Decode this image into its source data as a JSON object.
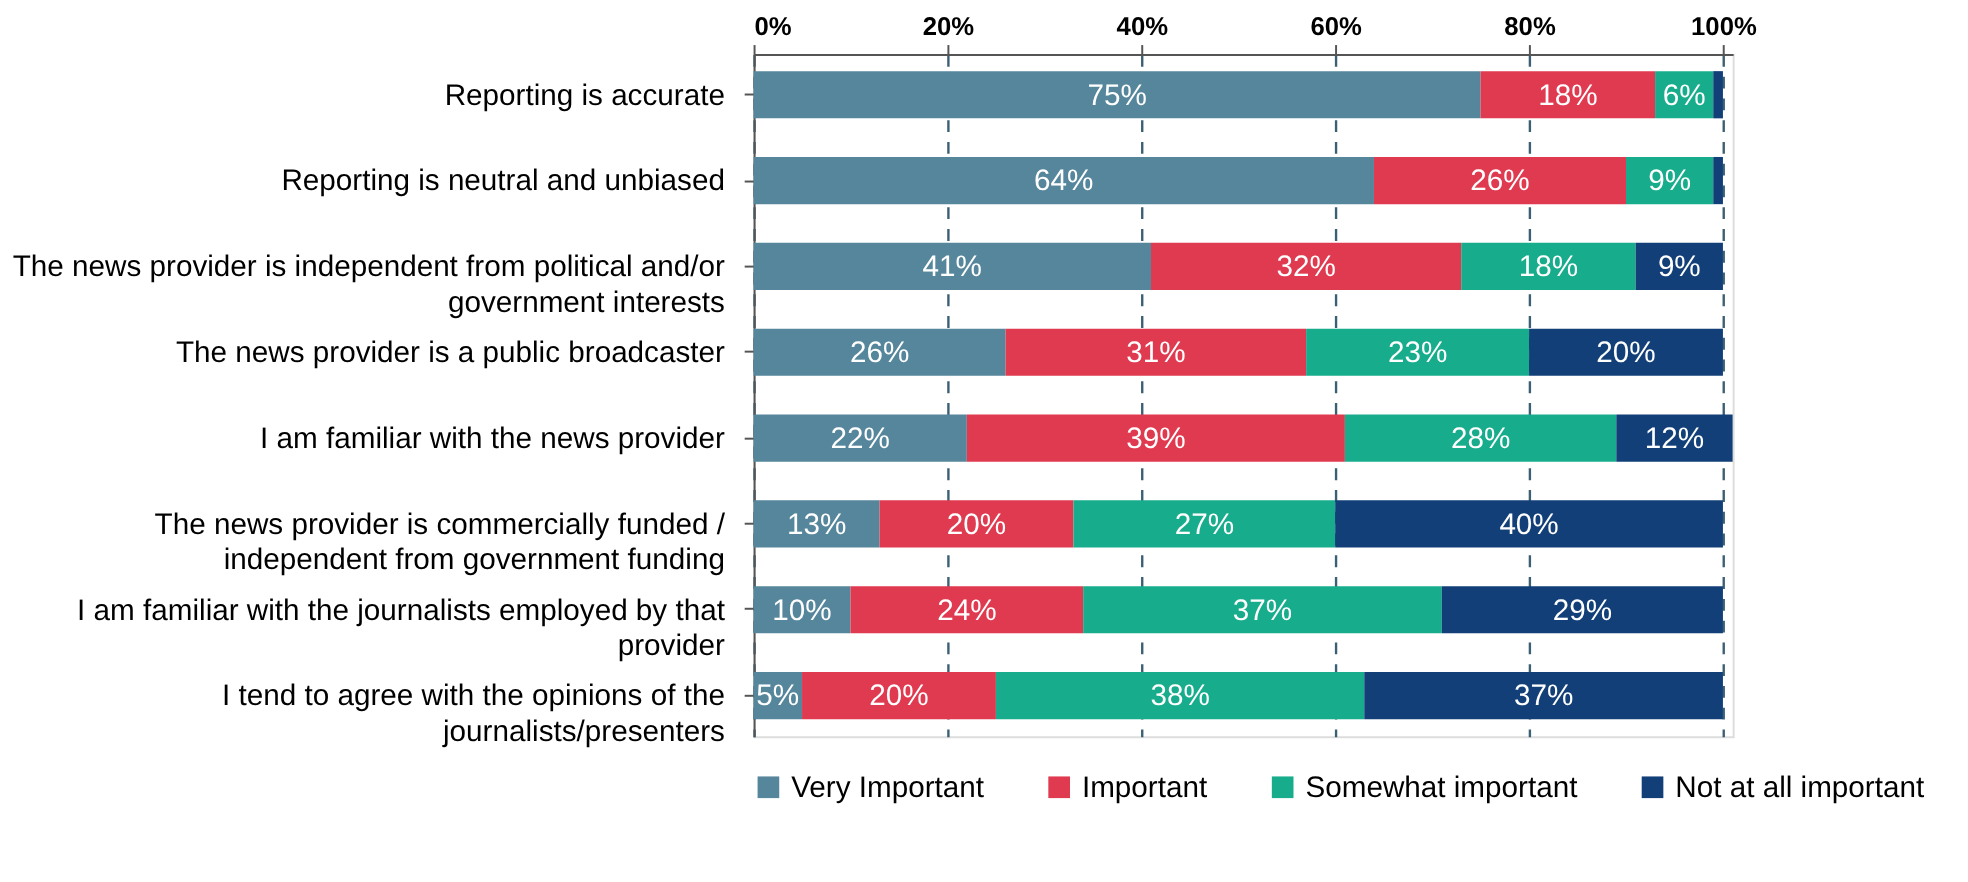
{
  "chart_data": {
    "type": "bar",
    "orientation": "horizontal",
    "stacked": true,
    "categories": [
      "Reporting is accurate",
      "Reporting is neutral and unbiased",
      "The news provider is independent from political and/or\ngovernment interests",
      "The news provider is a public broadcaster",
      "I am familiar with the news provider",
      "The news provider is commercially funded /\nindependent from government funding",
      "I am familiar with the journalists employed by that\nprovider",
      "I tend to agree with the opinions of the\njournalists/presenters"
    ],
    "series": [
      {
        "name": "Very Important",
        "color": "#56869b",
        "values": [
          75,
          64,
          41,
          26,
          22,
          13,
          10,
          5
        ],
        "value_labels": [
          "75%",
          "64%",
          "41%",
          "26%",
          "22%",
          "13%",
          "10%",
          "5%"
        ]
      },
      {
        "name": "Important",
        "color": "#df3a4f",
        "values": [
          18,
          26,
          32,
          31,
          39,
          20,
          24,
          20
        ],
        "value_labels": [
          "18%",
          "26%",
          "32%",
          "31%",
          "39%",
          "20%",
          "24%",
          "20%"
        ]
      },
      {
        "name": "Somewhat important",
        "color": "#17ac8c",
        "values": [
          6,
          9,
          18,
          23,
          28,
          27,
          37,
          38
        ],
        "value_labels": [
          "6%",
          "9%",
          "18%",
          "23%",
          "28%",
          "27%",
          "37%",
          "38%"
        ]
      },
      {
        "name": "Not at all important",
        "color": "#123f78",
        "values": [
          1,
          1,
          9,
          20,
          12,
          40,
          29,
          37
        ],
        "value_labels": [
          null,
          null,
          "9%",
          "20%",
          "12%",
          "40%",
          "29%",
          "37%"
        ]
      }
    ],
    "xlim": [
      0,
      101
    ],
    "xticks": [
      {
        "value": 0,
        "label": "0%"
      },
      {
        "value": 20,
        "label": "20%"
      },
      {
        "value": 40,
        "label": "40%"
      },
      {
        "value": 60,
        "label": "60%"
      },
      {
        "value": 80,
        "label": "80%"
      },
      {
        "value": 100,
        "label": "100%"
      }
    ],
    "grid": "x",
    "legend": "bottom"
  }
}
